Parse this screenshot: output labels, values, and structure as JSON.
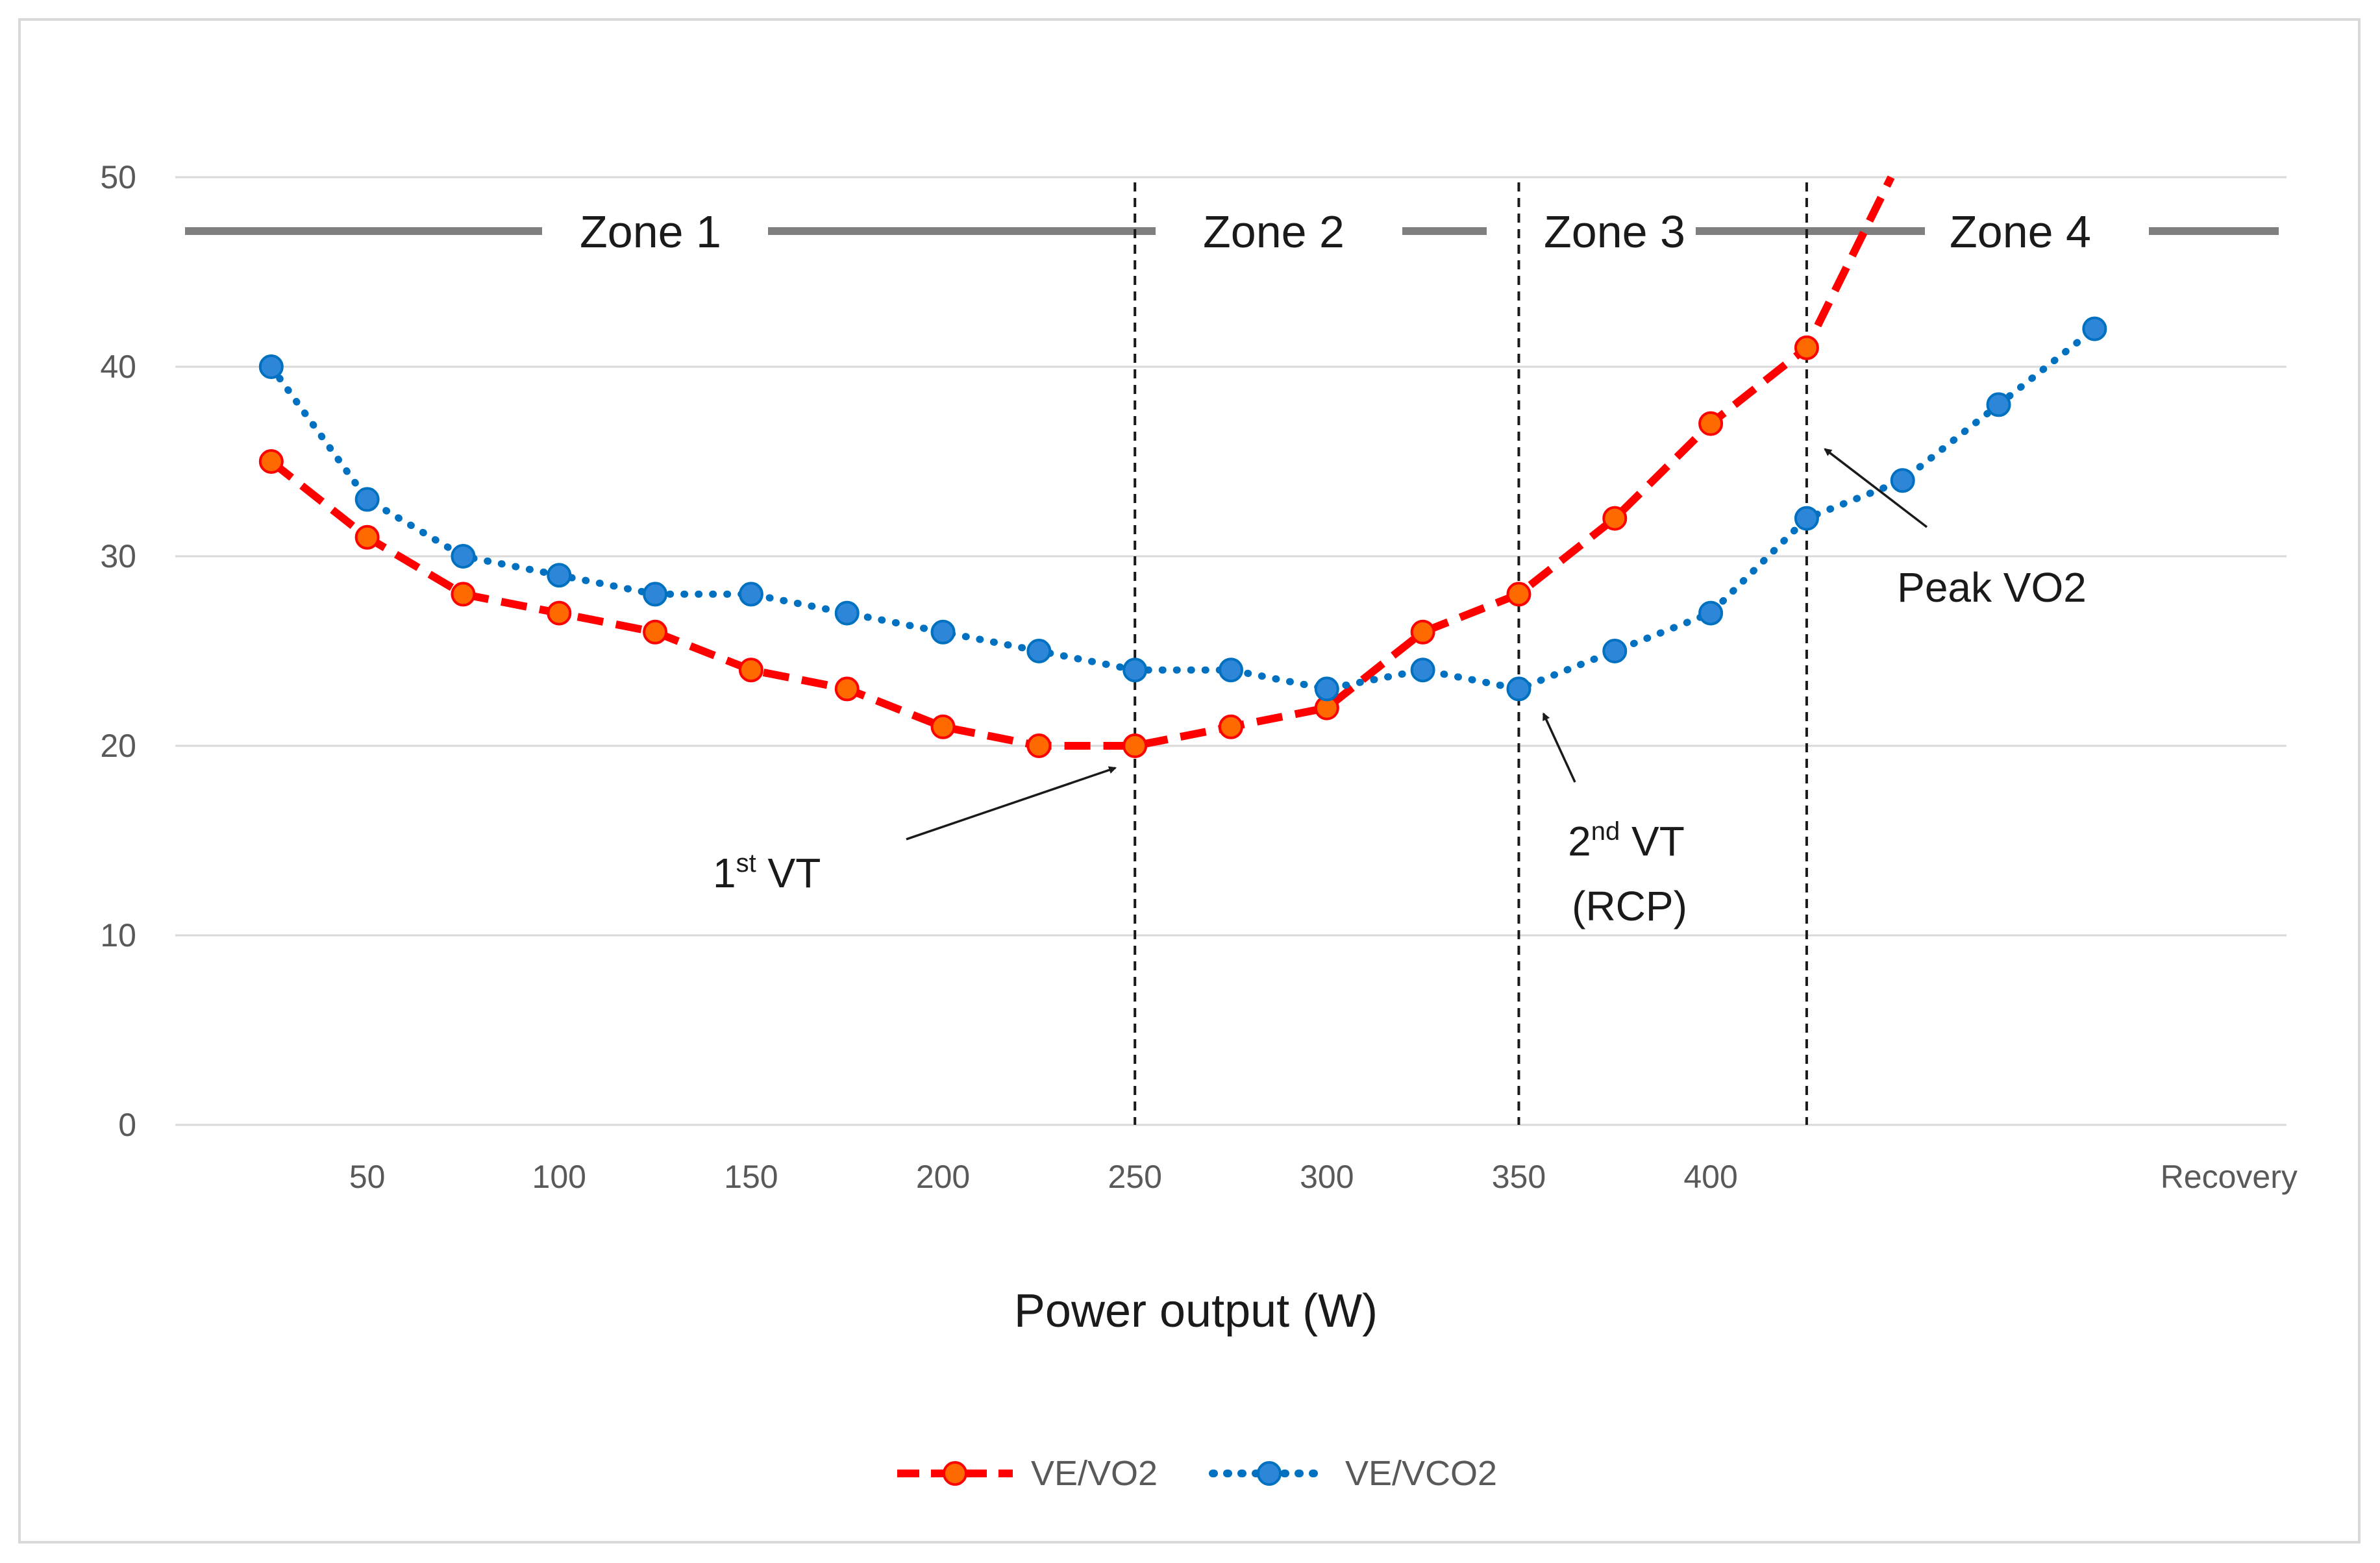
{
  "chart_data": {
    "type": "line",
    "x": [
      25,
      50,
      75,
      100,
      125,
      150,
      175,
      200,
      225,
      250,
      275,
      300,
      325,
      350,
      375,
      400,
      425,
      450,
      475,
      500
    ],
    "categories_shown": [
      "50",
      "100",
      "150",
      "200",
      "250",
      "300",
      "350",
      "400",
      "Recovery"
    ],
    "series": [
      {
        "name": "VE/VO2",
        "color": "#ff0000",
        "marker_color": "#ff6a00",
        "style": "dashed",
        "x": [
          25,
          50,
          75,
          100,
          125,
          150,
          175,
          200,
          225,
          250,
          275,
          300,
          325,
          350,
          375,
          400,
          425
        ],
        "values": [
          35,
          31,
          28,
          27,
          26,
          24,
          23,
          21,
          20,
          20,
          21,
          22,
          26,
          28,
          32,
          37,
          41
        ],
        "extends_to": {
          "x": 447,
          "y": 50
        }
      },
      {
        "name": "VE/VCO2",
        "color": "#0070c0",
        "marker_color": "#2e86d9",
        "style": "dotted",
        "x": [
          25,
          50,
          75,
          100,
          125,
          150,
          175,
          200,
          225,
          250,
          275,
          300,
          325,
          350,
          375,
          400,
          425,
          450,
          475,
          500
        ],
        "values": [
          40,
          33,
          30,
          29,
          28,
          28,
          27,
          26,
          25,
          24,
          24,
          23,
          24,
          23,
          25,
          27,
          32,
          34,
          38,
          42
        ]
      }
    ],
    "xlabel": "Power output (W)",
    "ylabel": "",
    "xlim": [
      0,
      550
    ],
    "ylim": [
      0,
      50
    ],
    "yticks": [
      "0",
      "10",
      "20",
      "30",
      "40",
      "50"
    ],
    "grid": true,
    "legend": "bottom-center",
    "thresholds": [
      {
        "name": "1st VT",
        "x": 250
      },
      {
        "name": "2nd VT (RCP)",
        "x": 350
      },
      {
        "name": "Peak VO2",
        "x": 425
      }
    ],
    "zones": [
      {
        "label": "Zone 1",
        "from": 0,
        "to": 250
      },
      {
        "label": "Zone 2",
        "from": 250,
        "to": 350
      },
      {
        "label": "Zone 3",
        "from": 350,
        "to": 425
      },
      {
        "label": "Zone 4",
        "from": 425,
        "to": 550
      }
    ],
    "annotations": {
      "vt1": {
        "main": "1",
        "sup": "st",
        "rest": " VT",
        "target_x": 250,
        "target_y": 20
      },
      "vt2": {
        "main": "2",
        "sup": "nd",
        "rest": " VT",
        "line2": "(RCP)",
        "target_x": 350,
        "target_y": 23
      },
      "peak": {
        "text": "Peak VO2",
        "target_x": 425,
        "target_y": 36
      }
    }
  }
}
